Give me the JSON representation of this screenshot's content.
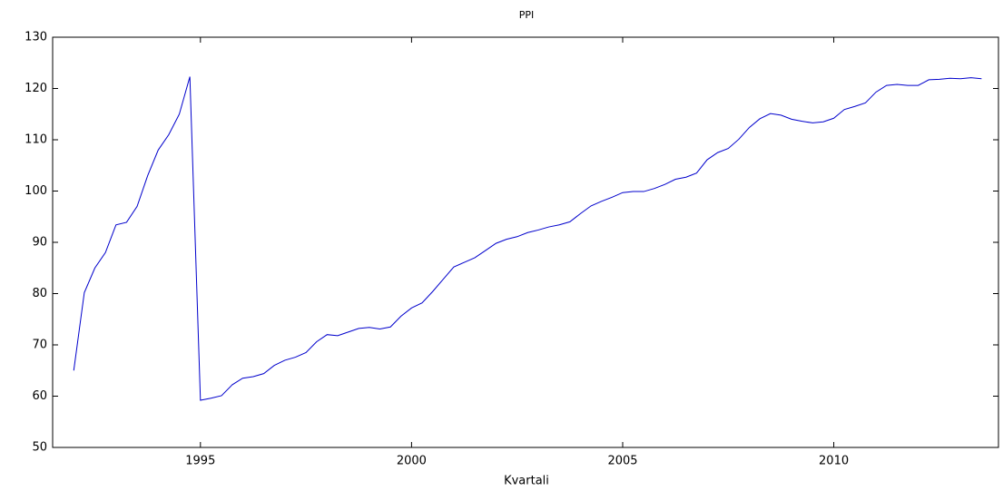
{
  "chart_data": {
    "type": "line",
    "title": "PPI",
    "x_label": "Kvartali",
    "x": [
      1992.0,
      1992.25,
      1992.5,
      1992.75,
      1993.0,
      1993.25,
      1993.5,
      1993.75,
      1994.0,
      1994.25,
      1994.5,
      1994.75,
      1995.0,
      1995.25,
      1995.5,
      1995.75,
      1996.0,
      1996.25,
      1996.5,
      1996.75,
      1997.0,
      1997.25,
      1997.5,
      1997.75,
      1998.0,
      1998.25,
      1998.5,
      1998.75,
      1999.0,
      1999.25,
      1999.5,
      1999.75,
      2000.0,
      2000.25,
      2000.5,
      2000.75,
      2001.0,
      2001.25,
      2001.5,
      2001.75,
      2002.0,
      2002.25,
      2002.5,
      2002.75,
      2003.0,
      2003.25,
      2003.5,
      2003.75,
      2004.0,
      2004.25,
      2004.5,
      2004.75,
      2005.0,
      2005.25,
      2005.5,
      2005.75,
      2006.0,
      2006.25,
      2006.5,
      2006.75,
      2007.0,
      2007.25,
      2007.5,
      2007.75,
      2008.0,
      2008.25,
      2008.5,
      2008.75,
      2009.0,
      2009.25,
      2009.5,
      2009.75,
      2010.0,
      2010.25,
      2010.5,
      2010.75,
      2011.0,
      2011.25,
      2011.5,
      2011.75,
      2012.0,
      2012.25,
      2012.5,
      2012.75,
      2013.0,
      2013.25,
      2013.5
    ],
    "series": [
      {
        "name": "PPI",
        "color": "#0000cc",
        "values": [
          65,
          80.2,
          85,
          88,
          93.4,
          93.9,
          97,
          103,
          108,
          111,
          115,
          122.3,
          59.2,
          59.6,
          60.1,
          62.2,
          63.5,
          63.8,
          64.4,
          66,
          67,
          67.6,
          68.5,
          70.6,
          72,
          71.8,
          72.5,
          73.2,
          73.4,
          73.1,
          73.5,
          75.6,
          77.2,
          78.2,
          80.4,
          82.8,
          85.2,
          86.1,
          87,
          88.4,
          89.8,
          90.6,
          91.1,
          91.9,
          92.4,
          93,
          93.4,
          94,
          95.6,
          97.1,
          98,
          98.8,
          99.7,
          99.9,
          99.9,
          100.5,
          101.3,
          102.3,
          102.7,
          103.5,
          106.1,
          107.5,
          108.3,
          110.1,
          112.4,
          114.1,
          115.1,
          114.8,
          114,
          113.6,
          113.3,
          113.5,
          114.2,
          115.9,
          116.5,
          117.2,
          119.3,
          120.6,
          120.8,
          120.6,
          120.6,
          121.7,
          121.8,
          122,
          121.9,
          122.1,
          121.9
        ]
      }
    ],
    "xlim": [
      1991.5,
      2013.9
    ],
    "xticks": [
      1995,
      2000,
      2005,
      2010
    ],
    "ylim": [
      50,
      130
    ],
    "yticks": [
      50,
      60,
      70,
      80,
      90,
      100,
      110,
      120,
      130
    ]
  }
}
